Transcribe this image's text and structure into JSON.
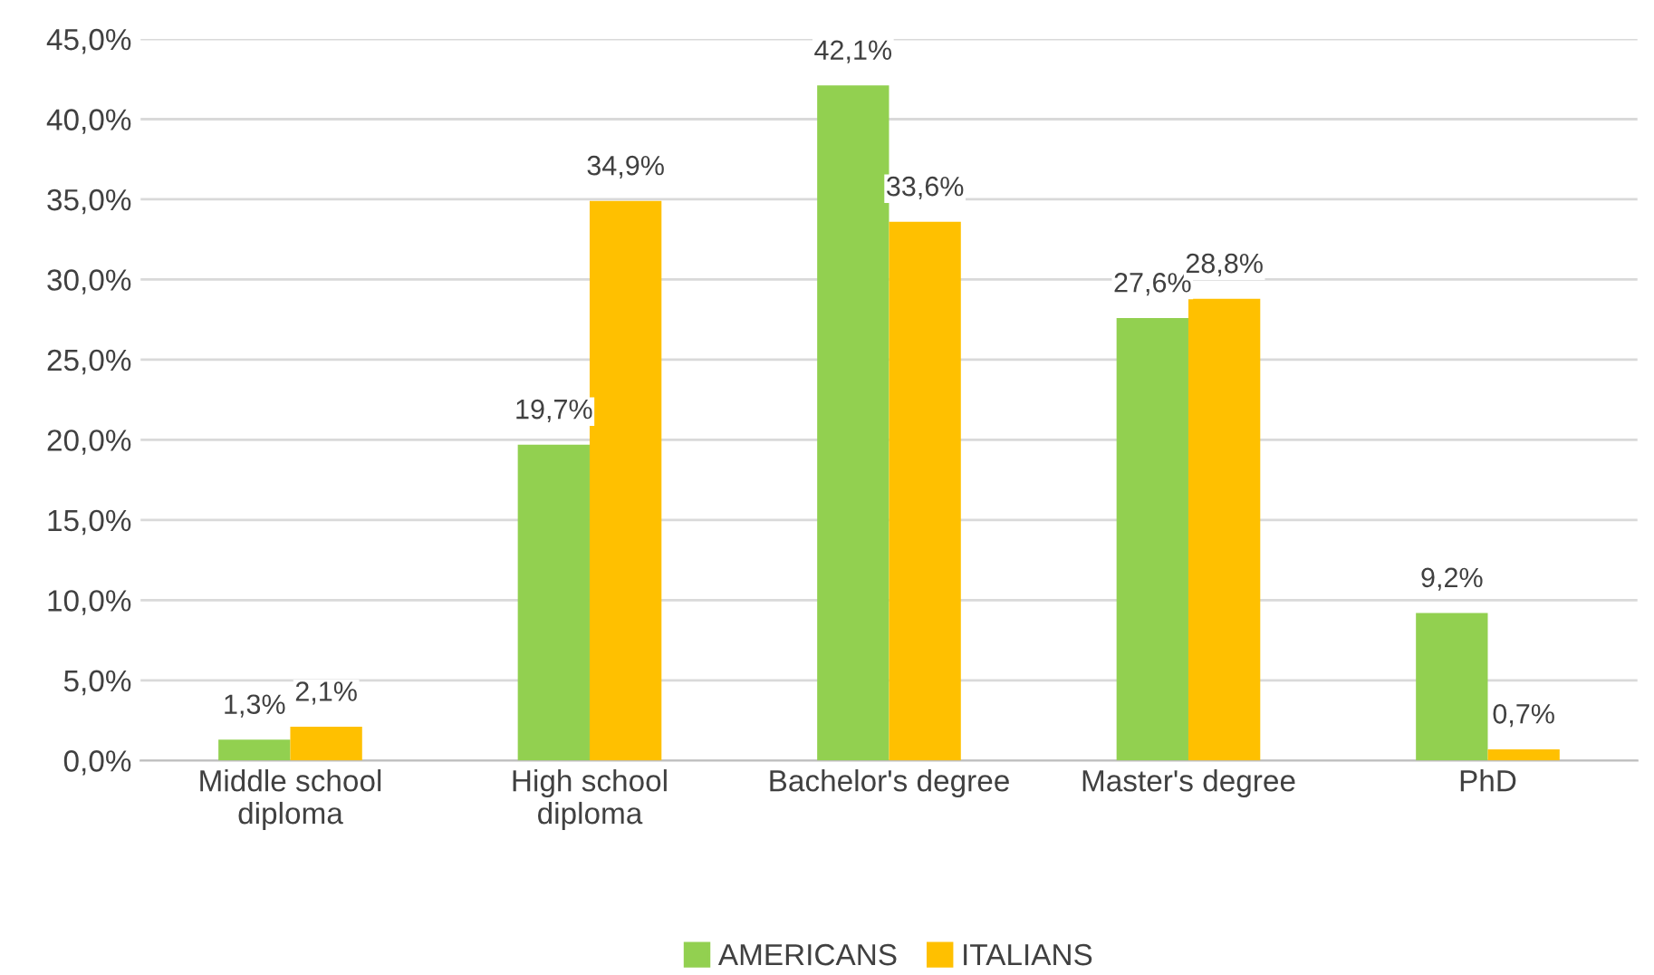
{
  "chart_data": {
    "type": "bar",
    "categories": [
      "Middle school\ndiploma",
      "High school\ndiploma",
      "Bachelor's degree",
      "Master's degree",
      "PhD"
    ],
    "series": [
      {
        "name": "AMERICANS",
        "color": "#92d050",
        "values": [
          1.3,
          19.7,
          42.1,
          27.6,
          9.2
        ],
        "value_labels": [
          "1,3%",
          "19,7%",
          "42,1%",
          "27,6%",
          "9,2%"
        ]
      },
      {
        "name": "ITALIANS",
        "color": "#ffc000",
        "values": [
          2.1,
          34.9,
          33.6,
          28.8,
          0.7
        ],
        "value_labels": [
          "2,1%",
          "34,9%",
          "33,6%",
          "28,8%",
          "0,7%"
        ]
      }
    ],
    "ylim": [
      0,
      45
    ],
    "yticks": [
      {
        "value": 0,
        "label": "0,0%"
      },
      {
        "value": 5,
        "label": "5,0%"
      },
      {
        "value": 10,
        "label": "10,0%"
      },
      {
        "value": 15,
        "label": "15,0%"
      },
      {
        "value": 20,
        "label": "20,0%"
      },
      {
        "value": 25,
        "label": "25,0%"
      },
      {
        "value": 30,
        "label": "30,0%"
      },
      {
        "value": 35,
        "label": "35,0%"
      },
      {
        "value": 40,
        "label": "40,0%"
      },
      {
        "value": 45,
        "label": "45,0%"
      }
    ],
    "grid": "y",
    "legend": "bottom"
  }
}
